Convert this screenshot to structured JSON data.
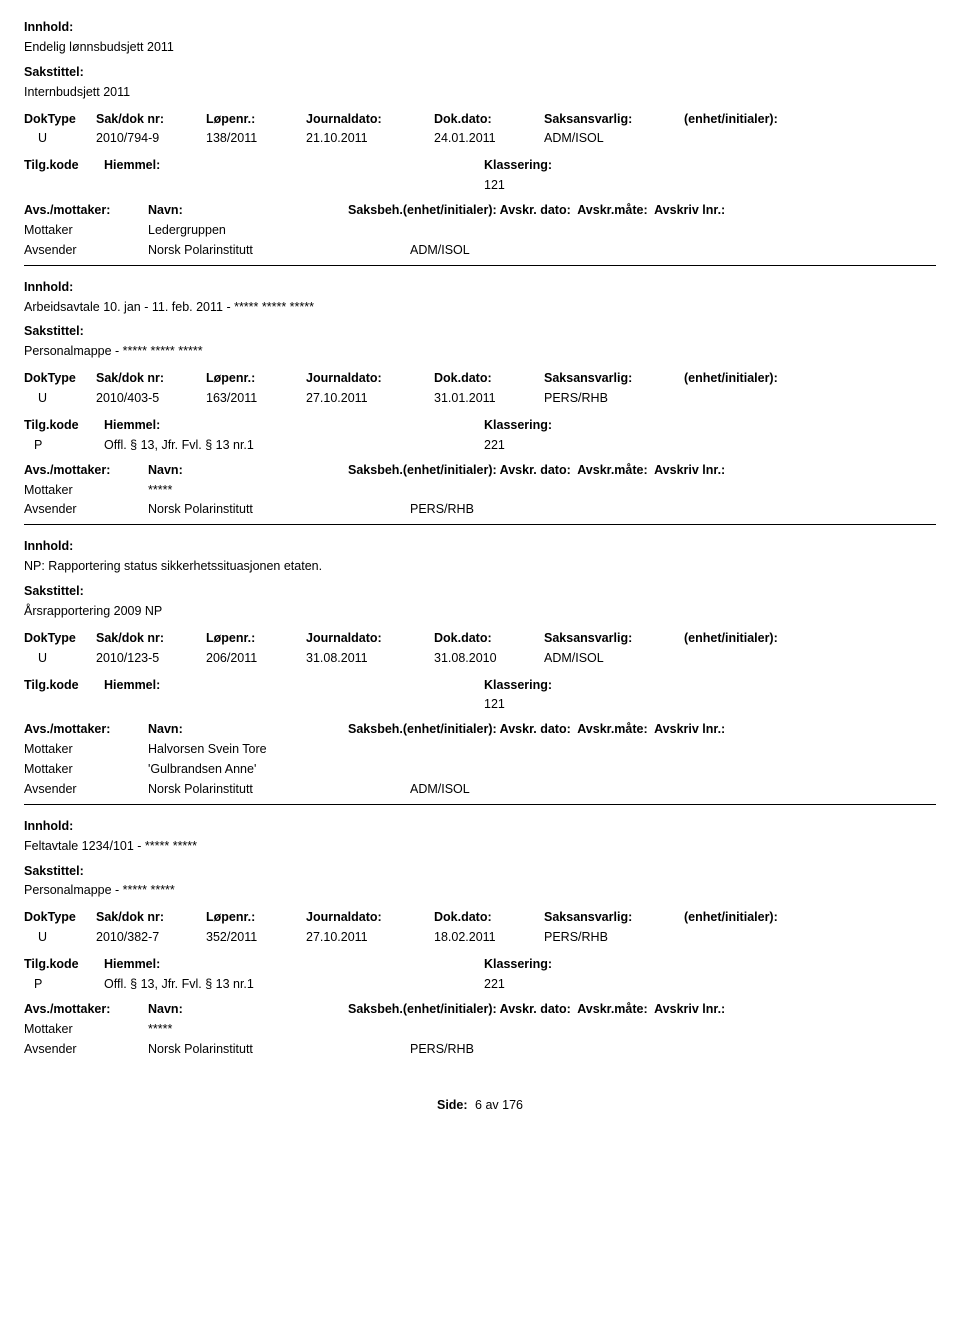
{
  "labels": {
    "innhold": "Innhold:",
    "sakstittel": "Sakstittel:",
    "doktype": "DokType",
    "saknr": "Sak/dok nr:",
    "lopenr": "Løpenr.:",
    "jdato": "Journaldato:",
    "ddato": "Dok.dato:",
    "saks": "Saksansvarlig:",
    "enhet": "(enhet/initialer):",
    "tilgkode": "Tilg.kode",
    "hjemmel": "Hiemmel:",
    "klass": "Klassering:",
    "avsmot": "Avs./mottaker:",
    "navn": "Navn:",
    "saksbeh": "Saksbeh.(enhet/initialer):",
    "avskrdato": "Avskr. dato:",
    "avskrmate": "Avskr.måte:",
    "avskrlnr": "Avskriv lnr.:",
    "mottaker": "Mottaker",
    "avsender": "Avsender",
    "side": "Side:"
  },
  "footer": {
    "text": "6  av  176"
  },
  "records": [
    {
      "innhold": "Endelig lønnsbudsjett 2011",
      "sakstittel": "Internbudsjett 2011",
      "doktype": "U",
      "saknr": "2010/794-9",
      "lopenr": "138/2011",
      "jdato": "21.10.2011",
      "ddato": "24.01.2011",
      "saks": "ADM/ISOL",
      "tilgkode": "",
      "hjemmel": "",
      "klass": "121",
      "mottakere": [
        {
          "navn": "Ledergruppen"
        }
      ],
      "avsender": "Norsk Polarinstitutt",
      "avsender_unit": "ADM/ISOL"
    },
    {
      "innhold": "Arbeidsavtale 10. jan - 11. feb. 2011 - ***** ***** *****",
      "sakstittel": "Personalmappe - ***** ***** *****",
      "doktype": "U",
      "saknr": "2010/403-5",
      "lopenr": "163/2011",
      "jdato": "27.10.2011",
      "ddato": "31.01.2011",
      "saks": "PERS/RHB",
      "tilgkode": "P",
      "hjemmel": "Offl. § 13, Jfr. Fvl. § 13 nr.1",
      "klass": "221",
      "mottakere": [
        {
          "navn": "*****"
        }
      ],
      "avsender": "Norsk Polarinstitutt",
      "avsender_unit": "PERS/RHB"
    },
    {
      "innhold": "NP: Rapportering status sikkerhetssituasjonen etaten.",
      "sakstittel": "Årsrapportering 2009 NP",
      "doktype": "U",
      "saknr": "2010/123-5",
      "lopenr": "206/2011",
      "jdato": "31.08.2011",
      "ddato": "31.08.2010",
      "saks": "ADM/ISOL",
      "tilgkode": "",
      "hjemmel": "",
      "klass": "121",
      "mottakere": [
        {
          "navn": "Halvorsen Svein Tore"
        },
        {
          "navn": "'Gulbrandsen Anne'"
        }
      ],
      "avsender": "Norsk Polarinstitutt",
      "avsender_unit": "ADM/ISOL"
    },
    {
      "innhold": "Feltavtale 1234/101 - ***** *****",
      "sakstittel": "Personalmappe - ***** *****",
      "doktype": "U",
      "saknr": "2010/382-7",
      "lopenr": "352/2011",
      "jdato": "27.10.2011",
      "ddato": "18.02.2011",
      "saks": "PERS/RHB",
      "tilgkode": "P",
      "hjemmel": "Offl. § 13, Jfr. Fvl. § 13 nr.1",
      "klass": "221",
      "mottakere": [
        {
          "navn": "*****"
        }
      ],
      "avsender": "Norsk Polarinstitutt",
      "avsender_unit": "PERS/RHB"
    }
  ]
}
